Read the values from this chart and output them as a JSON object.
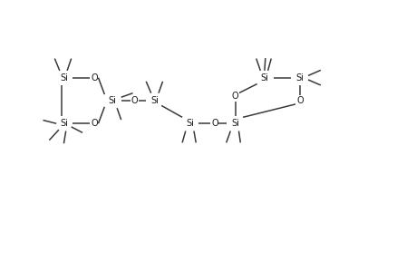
{
  "background": "#ffffff",
  "line_color": "#3a3a3a",
  "text_color": "#1a1a1a",
  "font_size": 7.0,
  "line_width": 1.1,
  "xlim": [
    0,
    10
  ],
  "ylim": [
    0,
    6.5
  ],
  "figsize": [
    4.6,
    3.0
  ],
  "dpi": 100
}
